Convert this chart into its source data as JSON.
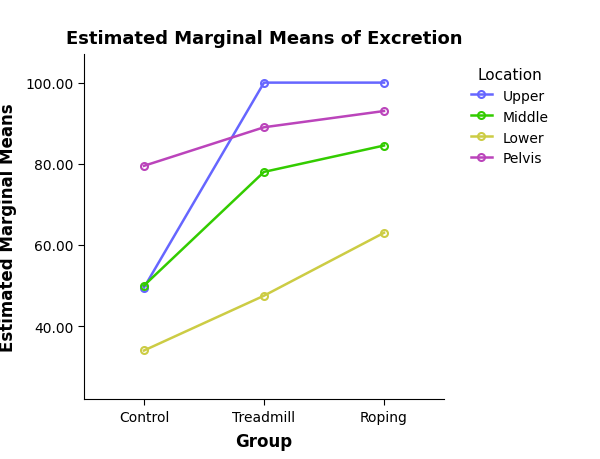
{
  "title": "Estimated Marginal Means of Excretion",
  "xlabel": "Group",
  "ylabel": "Estimated Marginal Means",
  "groups": [
    "Control",
    "Treadmill",
    "Roping"
  ],
  "series": [
    {
      "label": "Upper",
      "color": "#6666FF",
      "values": [
        49.5,
        100.0,
        100.0
      ]
    },
    {
      "label": "Middle",
      "color": "#33CC00",
      "values": [
        50.0,
        78.0,
        84.5
      ]
    },
    {
      "label": "Lower",
      "color": "#CCCC44",
      "values": [
        34.0,
        47.5,
        63.0
      ]
    },
    {
      "label": "Pelvis",
      "color": "#BB44BB",
      "values": [
        79.5,
        89.0,
        93.0
      ]
    }
  ],
  "ylim": [
    22,
    107
  ],
  "yticks": [
    40.0,
    60.0,
    80.0,
    100.0
  ],
  "legend_title": "Location",
  "legend_title_fontsize": 11,
  "legend_fontsize": 10,
  "title_fontsize": 13,
  "axis_label_fontsize": 12,
  "tick_fontsize": 10,
  "marker": "o",
  "marker_size": 5,
  "line_width": 1.8,
  "background_color": "#ffffff",
  "grid": false
}
